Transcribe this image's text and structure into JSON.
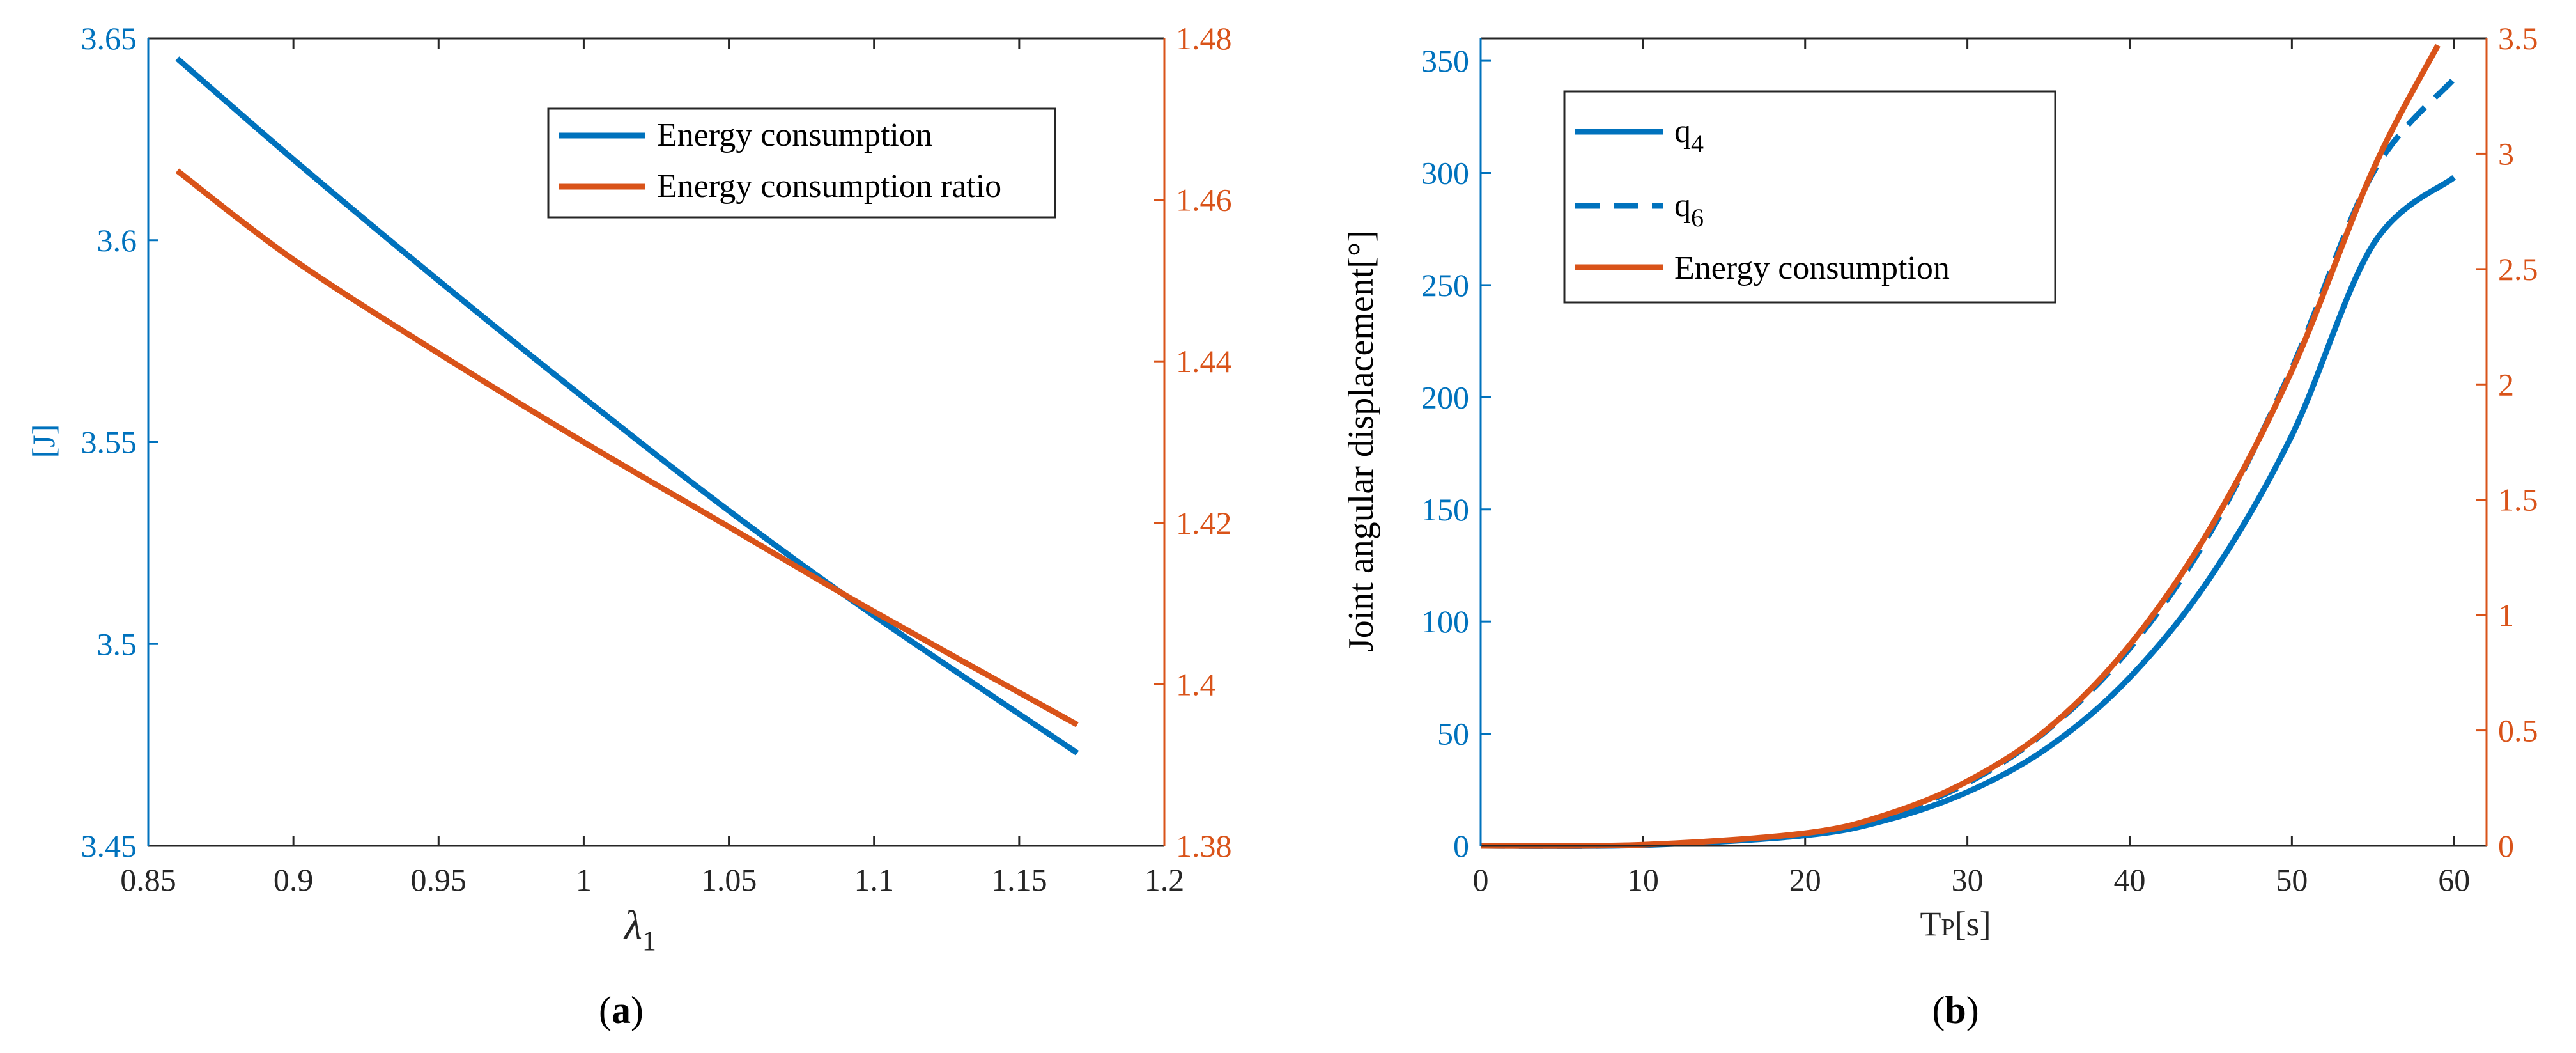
{
  "colors": {
    "blue": "#0072BD",
    "red": "#D95319",
    "axis": "#262626"
  },
  "chart_data": [
    {
      "type": "line",
      "caption": "(a)",
      "caption_bold": "a",
      "xlabel": "λ",
      "xlabel_sub": "1",
      "ylabel_left": "[J]",
      "ylabel_right": "",
      "xlim": [
        0.85,
        1.2
      ],
      "ylim_left": [
        3.45,
        3.65
      ],
      "ylim_right": [
        1.38,
        1.48
      ],
      "xticks": [
        0.85,
        0.9,
        0.95,
        1,
        1.05,
        1.1,
        1.15,
        1.2
      ],
      "xtick_labels": [
        "0.85",
        "0.9",
        "0.95",
        "1",
        "1.05",
        "1.1",
        "1.15",
        "1.2"
      ],
      "yticks_left": [
        3.45,
        3.5,
        3.55,
        3.6,
        3.65
      ],
      "ytick_labels_left": [
        "3.45",
        "3.5",
        "3.55",
        "3.6",
        "3.65"
      ],
      "yticks_right": [
        1.38,
        1.4,
        1.42,
        1.44,
        1.46,
        1.48
      ],
      "ytick_labels_right": [
        "1.38",
        "1.4",
        "1.42",
        "1.44",
        "1.46",
        "1.48"
      ],
      "legend": {
        "position": "top-right",
        "entries": [
          "Energy consumption",
          "Energy consumption ratio"
        ]
      },
      "series": [
        {
          "name": "Energy consumption",
          "axis": "left",
          "style": "solid",
          "color": "blue",
          "x": [
            0.86,
            0.9,
            0.95,
            1.0,
            1.05,
            1.1,
            1.17
          ],
          "y": [
            3.645,
            3.62,
            3.59,
            3.561,
            3.533,
            3.507,
            3.473
          ]
        },
        {
          "name": "Energy consumption ratio",
          "axis": "right",
          "style": "solid",
          "color": "red",
          "x": [
            0.86,
            0.9,
            0.95,
            1.0,
            1.05,
            1.1,
            1.17
          ],
          "y": [
            1.4636,
            1.4526,
            1.441,
            1.43,
            1.4195,
            1.409,
            1.395
          ]
        }
      ]
    },
    {
      "type": "line",
      "caption": "(b)",
      "caption_bold": "b",
      "xlabel": "T",
      "xlabel_sub": "P",
      "xlabel_suffix": "[s]",
      "ylabel_left": "Joint angular displacement[°]",
      "ylabel_right": "",
      "xlim": [
        0,
        62
      ],
      "ylim_left": [
        0,
        360
      ],
      "ylim_right": [
        0,
        3.5
      ],
      "xticks": [
        0,
        10,
        20,
        30,
        40,
        50,
        60
      ],
      "xtick_labels": [
        "0",
        "10",
        "20",
        "30",
        "40",
        "50",
        "60"
      ],
      "yticks_left": [
        0,
        50,
        100,
        150,
        200,
        250,
        300,
        350
      ],
      "ytick_labels_left": [
        "0",
        "50",
        "100",
        "150",
        "200",
        "250",
        "300",
        "350"
      ],
      "yticks_right": [
        0,
        0.5,
        1,
        1.5,
        2,
        2.5,
        3,
        3.5
      ],
      "ytick_labels_right": [
        "0",
        "0.5",
        "1",
        "1.5",
        "2",
        "2.5",
        "3",
        "3.5"
      ],
      "legend": {
        "position": "top-left",
        "entries": [
          "q",
          "q",
          "Energy consumption"
        ],
        "subscripts": [
          "4",
          "6",
          ""
        ]
      },
      "series": [
        {
          "name": "q4",
          "axis": "left",
          "style": "solid",
          "color": "blue",
          "x": [
            0,
            10,
            20,
            25,
            30,
            35,
            40,
            45,
            50,
            55,
            60
          ],
          "y": [
            0,
            0.3,
            4.7,
            11.5,
            24,
            44,
            75,
            120,
            183,
            268,
            298
          ]
        },
        {
          "name": "q6",
          "axis": "left",
          "style": "dashed",
          "color": "blue",
          "x": [
            0,
            10,
            20,
            25,
            30,
            35,
            40,
            45,
            50,
            55,
            60
          ],
          "y": [
            0,
            0.4,
            5.5,
            13.5,
            28,
            52,
            88,
            140,
            213,
            300,
            342
          ]
        },
        {
          "name": "Energy consumption",
          "axis": "right",
          "style": "solid",
          "color": "red",
          "x": [
            0,
            10,
            20,
            25,
            30,
            35,
            40,
            45,
            50,
            55,
            59
          ],
          "y": [
            0,
            0.005,
            0.055,
            0.135,
            0.28,
            0.51,
            0.87,
            1.38,
            2.06,
            2.93,
            3.47
          ]
        }
      ]
    }
  ]
}
